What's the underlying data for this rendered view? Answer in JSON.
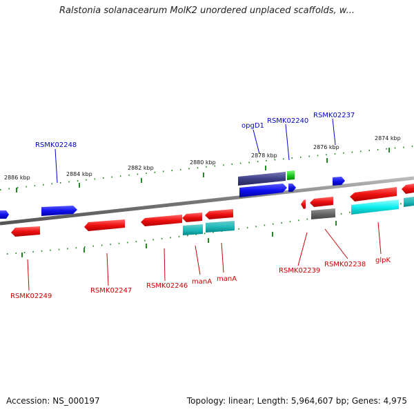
{
  "title": "Ralstonia solanacearum MolK2 unordered unplaced scaffolds, w...",
  "footer": {
    "accession": "Accession: NS_000197",
    "summary": "Topology: linear; Length: 5,964,607 bp; Genes: 4,975"
  },
  "colors": {
    "forward_gene": "#1a1aff",
    "reverse_gene": "#ff1a1a",
    "rna_gene": "#22dddd",
    "pseudo_gene": "#707070",
    "dark_gene": "#4a4a99",
    "green_gene": "#33cc33",
    "label_forward": "#0000cc",
    "label_reverse": "#cc0000",
    "backbone": "#888888",
    "ticks": "#228822"
  },
  "scale_labels": [
    "2886 kbp",
    "2884 kbp",
    "2882 kbp",
    "2880 kbp",
    "2878 kbp",
    "2876 kbp",
    "2874 kbp"
  ],
  "forward_labels": [
    "RSMK02248",
    "opgD1",
    "RSMK02240",
    "RSMK02237"
  ],
  "reverse_labels": [
    "RSMK02249",
    "RSMK02247",
    "RSMK02246",
    "manA",
    "manA",
    "RSMK02239",
    "RSMK02238",
    "glpK"
  ]
}
